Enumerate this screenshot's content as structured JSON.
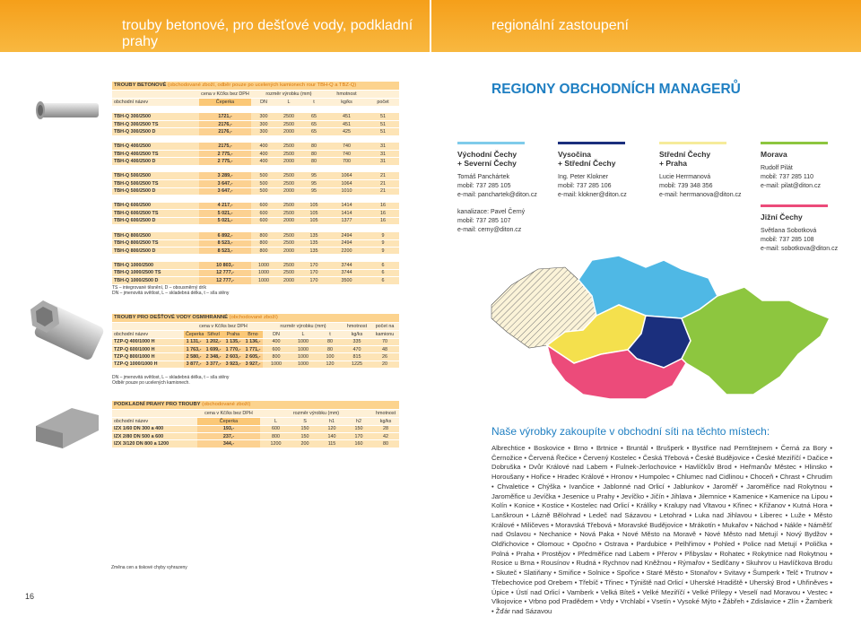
{
  "header": {
    "left_title": "trouby betonové, pro dešťové vody, podkladní prahy",
    "right_title": "regionální zastoupení",
    "page_number": "16"
  },
  "table1": {
    "title": "TROUBY BETONOVÉ",
    "subtitle": "(obchodované zboží, odběr pouze po ucelených kamionech rour TBH-Q a TBZ-Q)",
    "head": {
      "name": "obchodní název",
      "price": "cena v Kč/ks bez DPH",
      "plant": "Čeperka",
      "dim": "rozměr výrobku (mm)",
      "dn": "DN",
      "l": "L",
      "t": "t",
      "weight": "hmotnost",
      "unit": "kg/ks",
      "count": "počet"
    },
    "groups": [
      [
        [
          "TBH-Q 300/2500",
          "1721,-",
          "300",
          "2500",
          "65",
          "451",
          "51"
        ],
        [
          "TBH-Q 300/2500 TS",
          "2176,-",
          "300",
          "2500",
          "65",
          "451",
          "51"
        ],
        [
          "TBH-Q 300/2500 D",
          "2176,-",
          "300",
          "2000",
          "65",
          "425",
          "51"
        ]
      ],
      [
        [
          "TBH-Q 400/2500",
          "2175,-",
          "400",
          "2500",
          "80",
          "740",
          "31"
        ],
        [
          "TBH-Q 400/2500 TS",
          "2 775,-",
          "400",
          "2500",
          "80",
          "740",
          "31"
        ],
        [
          "TBH-Q 400/2500 D",
          "2 775,-",
          "400",
          "2000",
          "80",
          "700",
          "31"
        ]
      ],
      [
        [
          "TBH-Q 500/2500",
          "3 289,-",
          "500",
          "2500",
          "95",
          "1064",
          "21"
        ],
        [
          "TBH-Q 500/2500 TS",
          "3 647,-",
          "500",
          "2500",
          "95",
          "1064",
          "21"
        ],
        [
          "TBH-Q 500/2500 D",
          "3 647,-",
          "500",
          "2000",
          "95",
          "1010",
          "21"
        ]
      ],
      [
        [
          "TBH-Q 600/2500",
          "4 217,-",
          "600",
          "2500",
          "105",
          "1414",
          "16"
        ],
        [
          "TBH-Q 600/2500 TS",
          "5 021,-",
          "600",
          "2500",
          "105",
          "1414",
          "16"
        ],
        [
          "TBH-Q 600/2500 D",
          "5 021,-",
          "600",
          "2000",
          "105",
          "1377",
          "16"
        ]
      ],
      [
        [
          "TBH-Q 800/2500",
          "6 892,-",
          "800",
          "2500",
          "135",
          "2494",
          "9"
        ],
        [
          "TBH-Q 800/2500 TS",
          "8 523,-",
          "800",
          "2500",
          "135",
          "2494",
          "9"
        ],
        [
          "TBH-Q 800/2500 D",
          "8 523,-",
          "800",
          "2000",
          "135",
          "2200",
          "9"
        ]
      ],
      [
        [
          "TBH-Q 1000/2500",
          "10 803,-",
          "1000",
          "2500",
          "170",
          "3744",
          "6"
        ],
        [
          "TBH-Q 1000/2500 TS",
          "12 777,-",
          "1000",
          "2500",
          "170",
          "3744",
          "6"
        ],
        [
          "TBH-Q 1000/2500 D",
          "12 777,-",
          "1000",
          "2000",
          "170",
          "3500",
          "6"
        ]
      ]
    ],
    "notes": [
      "TS – integrované těsnění, D – obousměrný drík",
      "DN – jmenovitá světlost, L – skladebná délka, t – síla stěny"
    ]
  },
  "table2": {
    "title": "TROUBY PRO DEŠŤOVÉ VODY OSMIHRANNÉ",
    "subtitle": "(obchodované zboží)",
    "head": {
      "name": "obchodní název",
      "price": "cena v Kč/ks bez DPH",
      "p1": "Čeperka",
      "p2": "Střezl",
      "p3": "Praha",
      "p4": "Brno",
      "dim": "rozměr výrobku (mm)",
      "dn": "DN",
      "l": "L",
      "t": "t",
      "weight": "hmotnost",
      "unit": "kg/ks",
      "count": "počet na",
      "count2": "kamionu"
    },
    "rows": [
      [
        "TZP-Q 400/1000 H",
        "1 131,-",
        "1 202,-",
        "1 135,-",
        "1 136,-",
        "400",
        "1000",
        "80",
        "335",
        "70"
      ],
      [
        "TZP-Q 600/1000 H",
        "1 763,-",
        "1 699,-",
        "1 770,-",
        "1 771,-",
        "600",
        "1000",
        "80",
        "470",
        "48"
      ],
      [
        "TZP-Q 800/1000 H",
        "2 580,-",
        "2 348,-",
        "2 603,-",
        "2 605,-",
        "800",
        "1000",
        "100",
        "815",
        "26"
      ],
      [
        "TZP-Q 1000/1000 H",
        "3 877,-",
        "3 377,-",
        "3 923,-",
        "3 927,-",
        "1000",
        "1000",
        "120",
        "1225",
        "20"
      ]
    ],
    "notes": [
      "DN – jmenovitá světlost, L – skladebná délka, t – síla stěny",
      "Odběr pouze po ucelených kamionech."
    ]
  },
  "table3": {
    "title": "PODKLADNÍ PRAHY PRO TROUBY",
    "subtitle": "(obchodované zboží)",
    "head": {
      "name": "obchodní název",
      "price": "cena v Kč/ks bez DPH",
      "plant": "Čeperka",
      "dim": "rozměr výrobku (mm)",
      "l": "L",
      "s": "S",
      "h1": "h1",
      "h2": "h2",
      "weight": "hmotnost",
      "unit": "kg/ks"
    },
    "rows": [
      [
        "IZX 1/60 DN 300 a 400",
        "193,-",
        "600",
        "150",
        "120",
        "150",
        "28"
      ],
      [
        "IZX 2/80 DN 500 a 600",
        "237,-",
        "800",
        "150",
        "140",
        "170",
        "42"
      ],
      [
        "IZX 3/120 DN 800 a 1200",
        "344,-",
        "1200",
        "200",
        "115",
        "160",
        "80"
      ]
    ]
  },
  "disclaimer": "Změna cen a tiskové chyby vyhrazeny",
  "regions_title": "REGIONY OBCHODNÍCH MANAGERŮ",
  "regions": [
    {
      "name": [
        "Východní Čechy",
        "+ Severní Čechy"
      ],
      "lines": [
        "Tomáš Panchártek",
        "mobil: 737 285 105",
        "e-mail: panchartek@diton.cz"
      ],
      "extra": [
        "kanalizace: Pavel Černý",
        "mobil: 737 285 107",
        "e-mail: cerny@diton.cz"
      ]
    },
    {
      "name": [
        "Vysočina",
        "+ Střední Čechy"
      ],
      "lines": [
        "Ing. Peter Klokner",
        "mobil: 737 285 106",
        "e-mail: klokner@diton.cz"
      ]
    },
    {
      "name": [
        "Střední Čechy",
        "+ Praha"
      ],
      "lines": [
        "Lucie Herrmanová",
        "mobil: 739 348 356",
        "e-mail: herrmanova@diton.cz"
      ]
    },
    {
      "name": [
        "Morava"
      ],
      "lines": [
        "Rudolf Pilát",
        "mobil: 737 285 110",
        "e-mail: pilat@diton.cz"
      ]
    },
    {
      "name": [
        "Jižní Čechy"
      ],
      "lines": [
        "Světlana Sobotková",
        "mobil: 737 285 108",
        "e-mail: sobotkova@diton.cz"
      ]
    }
  ],
  "network_title": "Naše výrobky zakoupíte v obchodní síti na těchto místech:",
  "network_list": "Albrechtice • Boskovice • Brno • Brtnice • Bruntál • Brušperk • Bystřice nad Pernštejnem • Černá za Bory • Černožice • Červená Řečice • Červený Kostelec • Česká Třebová • České Budějovice • České Meziříčí • Dačice • Dobruška • Dvůr Králové nad Labem • Fulnek-Jerlochovice • Havlíčkův Brod • Heřmanův Městec • Hlinsko • Horoušany • Hořice • Hradec Králové • Hronov • Humpolec • Chlumec nad Cidlinou • Choceň • Chrast • Chrudim • Chvaletice • Chýška • Ivančice • Jablonné nad Orlicí • Jablunkov • Jaroměř • Jaroměřice nad Rokytnou • Jaroměřice u Jevíčka • Jesenice u Prahy • Jevíčko • Jičín • Jihlava • Jilemnice • Kamenice • Kamenice na Lipou • Kolín • Konice • Kostice • Kostelec nad Orlicí • Králíky • Kralupy nad Vltavou • Křinec • Křižanov • Kutná Hora • Lanškroun • Lázně Bělohrad • Ledeč nad Sázavou • Letohrad • Luka nad Jihlavou • Liberec • Luže • Město Králové • Miličeves • Moravská Třebová • Moravské Budějovice • Mrákotín • Mukařov • Náchod • Nákle • Náměšť nad Oslavou • Nechanice • Nová Paka • Nové Město na Moravě • Nové Město nad Metují • Nový Bydžov • Oldřichovice • Olomouc • Opočno • Ostrava • Pardubice • Pelhřimov • Pohled • Police nad Metují • Polička • Polná • Praha • Prostějov • Předměřice nad Labem • Přerov • Přibyslav • Rohatec • Rokytnice nad Rokytnou • Rosice u Brna • Rousínov • Rudná • Rychnov nad Kněžnou • Rýmařov • Sedlčany • Skuhrov u Havlíčkova Brodu • Skuteč • Slatiňany • Smiřice • Solnice • Spořice • Staré Město • Stonařov • Svitavy • Šumperk • Telč • Trutnov • Třebechovice pod Orebem • Třebíč • Třinec • Týniště nad Orlicí • Uherské Hradiště • Uherský Brod • Uhřiněves • Úpice • Ústí nad Orlicí • Vamberk • Velká Bíteš • Velké Meziříčí • Velké Přílepy • Veselí nad Moravou • Vestec • Vlkojovice • Vrbno pod Pradědem • Vrdy • Vrchlabí • Vsetín • Vysoké Mýto • Žábřeh • Zdislavice • Zlín • Žamberk • Žďár nad Sázavou"
}
